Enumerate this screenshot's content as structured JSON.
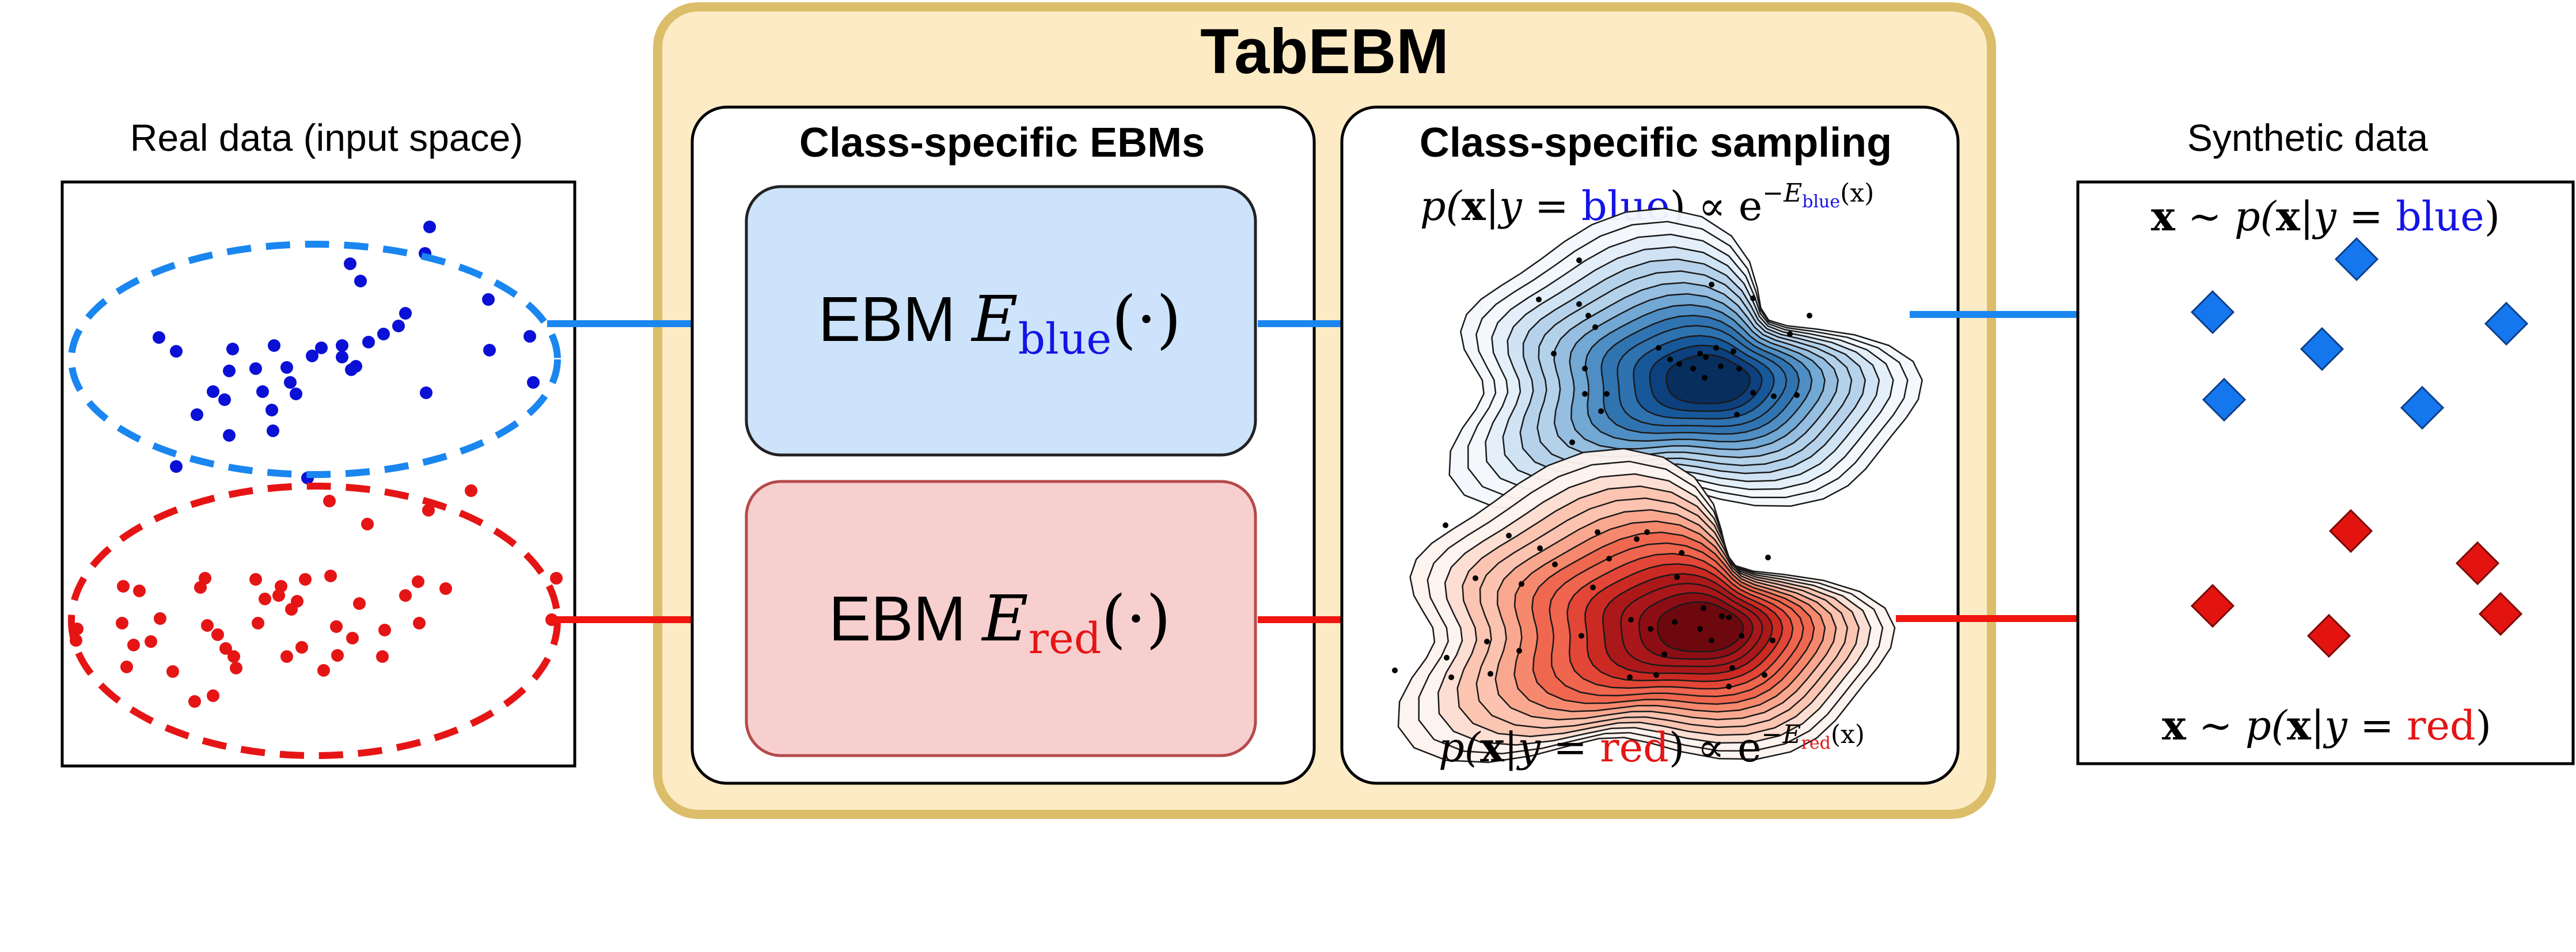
{
  "title": "TabEBM",
  "real_data": {
    "label": "Real data (input space)"
  },
  "ebm_panel": {
    "title": "Class-specific EBMs",
    "blue_box": {
      "prefix": "EBM",
      "symbol": "E",
      "subscript": "blue",
      "suffix": "(·)"
    },
    "red_box": {
      "prefix": "EBM",
      "symbol": "E",
      "subscript": "red",
      "suffix": "(·)"
    }
  },
  "sampling_panel": {
    "title": "Class-specific sampling",
    "blue_formula": {
      "lhs_open": "p(",
      "x": "x",
      "given": "|y = ",
      "cls": "blue",
      "rhs": ") ∝ e",
      "exp_prefix": "−E",
      "exp_sub": "blue",
      "exp_suffix": "(x)"
    },
    "red_formula": {
      "lhs_open": "p(",
      "x": "x",
      "given": "|y = ",
      "cls": "red",
      "rhs": ") ∝ e",
      "exp_prefix": "−E",
      "exp_sub": "red",
      "exp_suffix": "(x)"
    }
  },
  "synthetic_data": {
    "label": "Synthetic data",
    "blue_formula": {
      "x": "x",
      "mid": " ∼ p(",
      "x2": "x",
      "given": "|y = ",
      "cls": "blue",
      "end": ")"
    },
    "red_formula": {
      "x": "x",
      "mid": " ∼ p(",
      "x2": "x",
      "given": "|y = ",
      "cls": "red",
      "end": ")"
    }
  },
  "colors": {
    "outer_fill": "#fcebc4",
    "outer_stroke": "#dcbe6a",
    "blue_box_fill": "#cce3fb",
    "red_box_fill": "#f8cfcf",
    "red_box_stroke": "#b44a4a",
    "blue_points": "#0a10d6",
    "red_points": "#e51515",
    "blue_arrow": "#1a86f0",
    "red_arrow": "#f0160f",
    "blue_text": "#1414e6",
    "red_text": "#e51515",
    "blue_diamond": "#1577ee",
    "red_diamond": "#e3130f"
  }
}
